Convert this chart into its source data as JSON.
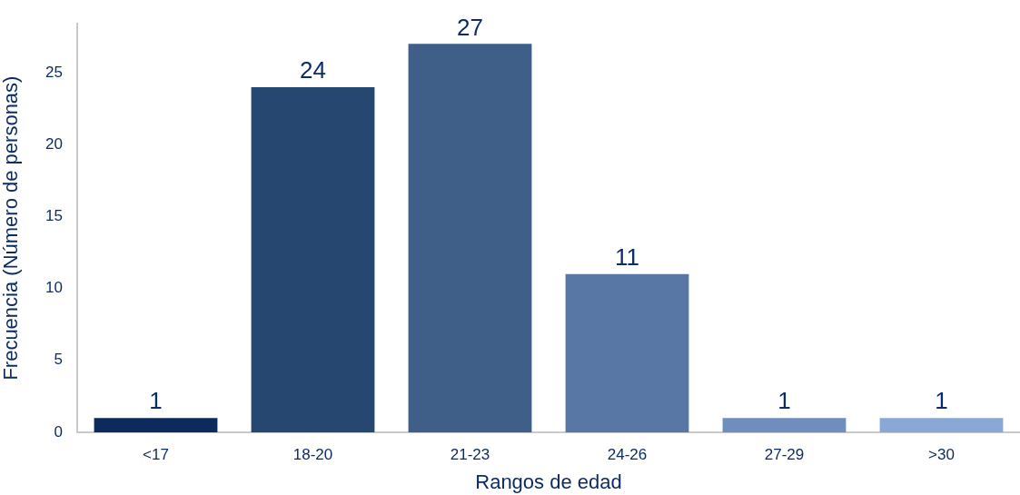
{
  "chart_data": {
    "type": "bar",
    "xlabel": "Rangos de edad",
    "ylabel": "Frecuencia (Número de personas)",
    "categories": [
      "<17",
      "18-20",
      "21-23",
      "24-26",
      "27-29",
      ">30"
    ],
    "values": [
      1,
      24,
      27,
      11,
      1,
      1
    ],
    "colors": [
      "#0c2a5b",
      "#264870",
      "#3f5f89",
      "#5977a5",
      "#6f8ebd",
      "#8aa8d5"
    ],
    "ylim": [
      0,
      28.4
    ],
    "yticks": [
      0,
      5,
      10,
      15,
      20,
      25
    ],
    "data_labels": true
  }
}
